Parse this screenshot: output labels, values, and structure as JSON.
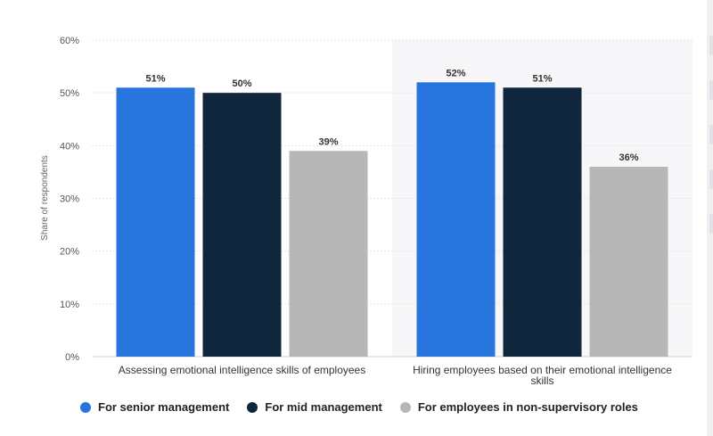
{
  "chart_data": {
    "type": "bar",
    "ylabel": "Share of respondents",
    "ylim": [
      0,
      60
    ],
    "yticks": [
      "0%",
      "10%",
      "20%",
      "30%",
      "40%",
      "50%",
      "60%"
    ],
    "categories": [
      [
        "Assessing emotional intelligence skills of employees"
      ],
      [
        "Hiring employees based on their emotional intelligence",
        "skills"
      ]
    ],
    "series": [
      {
        "name": "For senior management",
        "color": "#2876dd",
        "values": [
          51,
          52
        ],
        "labels": [
          "51%",
          "52%"
        ]
      },
      {
        "name": "For mid management",
        "color": "#10263d",
        "values": [
          50,
          51
        ],
        "labels": [
          "50%",
          "51%"
        ]
      },
      {
        "name": "For employees in non-supervisory roles",
        "color": "#b7b7b7",
        "values": [
          39,
          36
        ],
        "labels": [
          "39%",
          "36%"
        ]
      }
    ],
    "highlight_category": 1,
    "grid": true,
    "legend_position": "bottom"
  }
}
